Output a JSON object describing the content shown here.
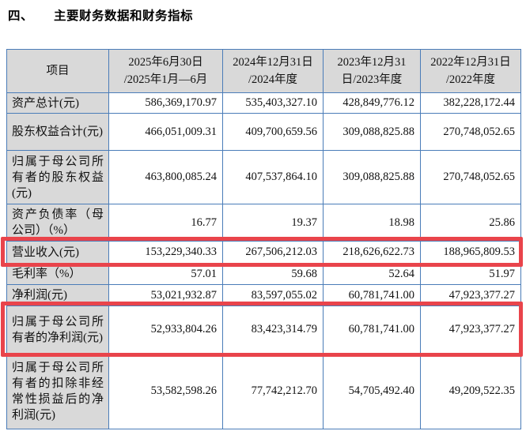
{
  "title": {
    "number": "四、",
    "text": "主要财务数据和财务指标"
  },
  "table": {
    "columns": [
      "项目",
      "2025年6月30日\n/2025年1月—6月",
      "2024年12月31日\n/2024年度",
      "2023年12月31\n日/2023年度",
      "2022年12月31日\n/2022年度"
    ],
    "rows": [
      {
        "label": "资产总计(元)",
        "values": [
          "586,369,170.97",
          "535,403,327.10",
          "428,849,776.12",
          "382,228,172.44"
        ],
        "highlighted": false
      },
      {
        "label": "股东权益合计(元)",
        "values": [
          "466,051,009.31",
          "409,700,659.56",
          "309,088,825.88",
          "270,748,052.65"
        ],
        "highlighted": false
      },
      {
        "label": "归属于母公司所有者的股东权益(元)",
        "values": [
          "463,800,085.24",
          "407,537,864.10",
          "309,088,825.88",
          "270,748,052.65"
        ],
        "highlighted": false
      },
      {
        "label": "资产负债率（母公司）（%）",
        "values": [
          "16.77",
          "19.37",
          "18.98",
          "25.86"
        ],
        "highlighted": false
      },
      {
        "label": "营业收入(元)",
        "values": [
          "153,229,340.33",
          "267,506,212.03",
          "218,626,622.73",
          "188,965,809.53"
        ],
        "highlighted": true
      },
      {
        "label": "毛利率（%）",
        "values": [
          "57.01",
          "59.68",
          "52.64",
          "51.97"
        ],
        "highlighted": false
      },
      {
        "label": "净利润(元)",
        "values": [
          "53,021,932.87",
          "83,597,055.02",
          "60,781,741.00",
          "47,923,377.27"
        ],
        "highlighted": false
      },
      {
        "label": "归属于母公司所有者的净利润(元)",
        "values": [
          "52,933,804.26",
          "83,423,314.79",
          "60,781,741.00",
          "47,923,377.27"
        ],
        "highlighted": true
      },
      {
        "label": "归属于母公司所有者的扣除非经常性损益后的净利润(元)",
        "values": [
          "53,582,598.26",
          "77,742,212.70",
          "54,705,492.40",
          "49,209,522.35"
        ],
        "highlighted": false
      }
    ]
  },
  "colors": {
    "highlight_box": "#e9444b",
    "table_border": "#4a7cb8",
    "header_bg": "#d9d9d9"
  }
}
